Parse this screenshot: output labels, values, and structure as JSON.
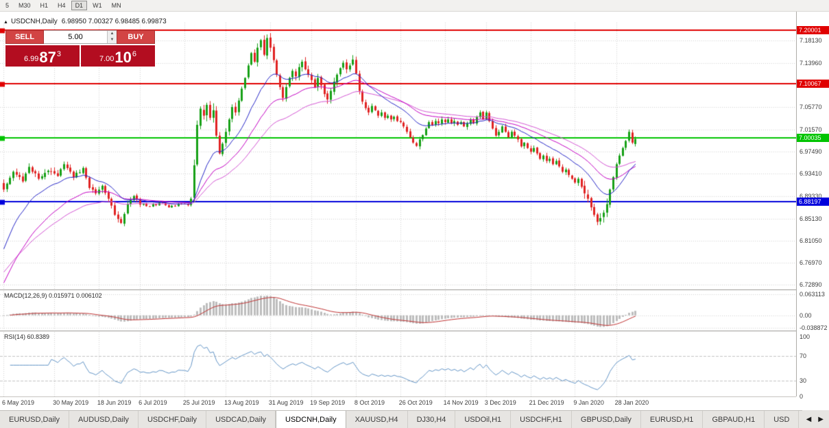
{
  "toolbar": {
    "timeframes": [
      {
        "label": "5",
        "active": false
      },
      {
        "label": "M30",
        "active": false
      },
      {
        "label": "H1",
        "active": false
      },
      {
        "label": "H4",
        "active": false
      },
      {
        "label": "D1",
        "active": true
      },
      {
        "label": "W1",
        "active": false
      },
      {
        "label": "MN",
        "active": false
      }
    ]
  },
  "chart": {
    "marker": "▲",
    "symbol_title": "USDCNH,Daily",
    "ohlc": "6.98950 7.00327 6.98485 6.99873"
  },
  "trade_panel": {
    "sell_label": "SELL",
    "buy_label": "BUY",
    "volume": "5.00",
    "spin_up": "▲",
    "spin_down": "▼",
    "sell_small": "6.99",
    "sell_big": "87",
    "sell_sup": "3",
    "buy_small": "7.00",
    "buy_big": "10",
    "buy_sup": "6"
  },
  "chart_data": {
    "type": "candlestick",
    "symbol": "USDCNH",
    "timeframe": "Daily",
    "num_candles": 200,
    "candle_spacing": 4.63,
    "ylim": [
      6.721,
      7.2145
    ],
    "last_candle": [
      6.9895,
      7.00327,
      6.98485,
      6.99873
    ],
    "close_anchors": [
      [
        0,
        6.905
      ],
      [
        3,
        6.938
      ],
      [
        6,
        6.92
      ],
      [
        8,
        6.947
      ],
      [
        11,
        6.925
      ],
      [
        14,
        6.94
      ],
      [
        17,
        6.93
      ],
      [
        19,
        6.952
      ],
      [
        22,
        6.928
      ],
      [
        25,
        6.945
      ],
      [
        27,
        6.908
      ],
      [
        29,
        6.898
      ],
      [
        31,
        6.912
      ],
      [
        33,
        6.888
      ],
      [
        35,
        6.858
      ],
      [
        37,
        6.843
      ],
      [
        39,
        6.878
      ],
      [
        41,
        6.893
      ],
      [
        43,
        6.877
      ],
      [
        46,
        6.874
      ],
      [
        49,
        6.881
      ],
      [
        52,
        6.872
      ],
      [
        55,
        6.879
      ],
      [
        58,
        6.876
      ],
      [
        59,
        6.888
      ],
      [
        60,
        6.95
      ],
      [
        61,
        7.025
      ],
      [
        62,
        7.055
      ],
      [
        63,
        7.042
      ],
      [
        64,
        7.062
      ],
      [
        65,
        7.038
      ],
      [
        66,
        7.052
      ],
      [
        67,
        7.005
      ],
      [
        68,
        6.972
      ],
      [
        69,
        6.99
      ],
      [
        70,
        7.012
      ],
      [
        71,
        7.035
      ],
      [
        72,
        7.058
      ],
      [
        73,
        7.048
      ],
      [
        74,
        7.07
      ],
      [
        75,
        7.092
      ],
      [
        76,
        7.112
      ],
      [
        77,
        7.135
      ],
      [
        78,
        7.158
      ],
      [
        79,
        7.142
      ],
      [
        80,
        7.168
      ],
      [
        81,
        7.182
      ],
      [
        82,
        7.155
      ],
      [
        83,
        7.186
      ],
      [
        84,
        7.168
      ],
      [
        85,
        7.145
      ],
      [
        86,
        7.118
      ],
      [
        87,
        7.095
      ],
      [
        88,
        7.075
      ],
      [
        89,
        7.095
      ],
      [
        90,
        7.112
      ],
      [
        91,
        7.125
      ],
      [
        92,
        7.115
      ],
      [
        93,
        7.132
      ],
      [
        94,
        7.142
      ],
      [
        95,
        7.128
      ],
      [
        96,
        7.118
      ],
      [
        97,
        7.108
      ],
      [
        98,
        7.095
      ],
      [
        99,
        7.112
      ],
      [
        100,
        7.098
      ],
      [
        101,
        7.082
      ],
      [
        102,
        7.072
      ],
      [
        103,
        7.088
      ],
      [
        104,
        7.105
      ],
      [
        105,
        7.118
      ],
      [
        106,
        7.13
      ],
      [
        107,
        7.14
      ],
      [
        108,
        7.128
      ],
      [
        109,
        7.135
      ],
      [
        110,
        7.146
      ],
      [
        111,
        7.12
      ],
      [
        112,
        7.088
      ],
      [
        113,
        7.068
      ],
      [
        114,
        7.056
      ],
      [
        115,
        7.048
      ],
      [
        116,
        7.06
      ],
      [
        117,
        7.052
      ],
      [
        118,
        7.042
      ],
      [
        119,
        7.048
      ],
      [
        120,
        7.038
      ],
      [
        121,
        7.042
      ],
      [
        122,
        7.035
      ],
      [
        123,
        7.04
      ],
      [
        124,
        7.032
      ],
      [
        125,
        7.03
      ],
      [
        126,
        7.022
      ],
      [
        127,
        7.012
      ],
      [
        128,
        7.002
      ],
      [
        129,
        6.992
      ],
      [
        130,
        6.986
      ],
      [
        131,
        6.998
      ],
      [
        132,
        7.006
      ],
      [
        133,
        7.018
      ],
      [
        134,
        7.03
      ],
      [
        135,
        7.025
      ],
      [
        136,
        7.032
      ],
      [
        137,
        7.028
      ],
      [
        138,
        7.035
      ],
      [
        139,
        7.03
      ],
      [
        140,
        7.035
      ],
      [
        141,
        7.028
      ],
      [
        142,
        7.032
      ],
      [
        143,
        7.025
      ],
      [
        144,
        7.03
      ],
      [
        145,
        7.022
      ],
      [
        146,
        7.028
      ],
      [
        147,
        7.035
      ],
      [
        148,
        7.028
      ],
      [
        149,
        7.04
      ],
      [
        150,
        7.048
      ],
      [
        151,
        7.035
      ],
      [
        152,
        7.048
      ],
      [
        153,
        7.032
      ],
      [
        154,
        7.018
      ],
      [
        155,
        7.005
      ],
      [
        156,
        7.012
      ],
      [
        157,
        7.022
      ],
      [
        158,
        7.012
      ],
      [
        159,
        7.002
      ],
      [
        160,
        7.012
      ],
      [
        161,
        7.005
      ],
      [
        162,
        6.998
      ],
      [
        163,
        6.985
      ],
      [
        164,
        6.992
      ],
      [
        165,
        6.982
      ],
      [
        166,
        6.975
      ],
      [
        167,
        6.982
      ],
      [
        168,
        6.972
      ],
      [
        169,
        6.962
      ],
      [
        170,
        6.968
      ],
      [
        171,
        6.958
      ],
      [
        172,
        6.962
      ],
      [
        173,
        6.952
      ],
      [
        174,
        6.958
      ],
      [
        175,
        6.948
      ],
      [
        176,
        6.938
      ],
      [
        177,
        6.942
      ],
      [
        178,
        6.932
      ],
      [
        179,
        6.925
      ],
      [
        180,
        6.918
      ],
      [
        181,
        6.925
      ],
      [
        182,
        6.91
      ],
      [
        183,
        6.898
      ],
      [
        184,
        6.888
      ],
      [
        185,
        6.872
      ],
      [
        186,
        6.858
      ],
      [
        187,
        6.845
      ],
      [
        188,
        6.852
      ],
      [
        189,
        6.862
      ],
      [
        190,
        6.878
      ],
      [
        191,
        6.905
      ],
      [
        192,
        6.928
      ],
      [
        193,
        6.952
      ],
      [
        194,
        6.968
      ],
      [
        195,
        6.982
      ],
      [
        196,
        6.995
      ],
      [
        197,
        7.012
      ],
      [
        198,
        6.992
      ],
      [
        199,
        6.99873
      ]
    ],
    "levels": [
      {
        "price": 7.20001,
        "label": "7.20001",
        "color": "#e00000"
      },
      {
        "price": 7.10067,
        "label": "7.10067",
        "color": "#e00000"
      },
      {
        "price": 7.00035,
        "label": "7.00035",
        "color": "#00c400"
      },
      {
        "price": 6.88197,
        "label": "6.88197",
        "color": "#0000dc"
      }
    ],
    "y_ticks": [
      [
        7.1813,
        "7.18130"
      ],
      [
        7.1396,
        "7.13960"
      ],
      [
        7.0577,
        "7.05770"
      ],
      [
        7.0157,
        "7.01570"
      ],
      [
        6.9749,
        "6.97490"
      ],
      [
        6.9341,
        "6.93410"
      ],
      [
        6.8933,
        "6.89330"
      ],
      [
        6.8513,
        "6.85130"
      ],
      [
        6.8105,
        "6.81050"
      ],
      [
        6.7697,
        "6.76970"
      ],
      [
        6.7289,
        "6.72890"
      ]
    ],
    "x_ticks": [
      [
        0,
        "6 May 2019"
      ],
      [
        16,
        "30 May 2019"
      ],
      [
        30,
        "18 Jun 2019"
      ],
      [
        43,
        "6 Jul 2019"
      ],
      [
        57,
        "25 Jul 2019"
      ],
      [
        70,
        "13 Aug 2019"
      ],
      [
        84,
        "31 Aug 2019"
      ],
      [
        97,
        "19 Sep 2019"
      ],
      [
        111,
        "8 Oct 2019"
      ],
      [
        125,
        "26 Oct 2019"
      ],
      [
        139,
        "14 Nov 2019"
      ],
      [
        152,
        "3 Dec 2019"
      ],
      [
        166,
        "21 Dec 2019"
      ],
      [
        180,
        "9 Jan 2020"
      ],
      [
        193,
        "28 Jan 2020"
      ]
    ],
    "macd": {
      "label": "MACD(12,26,9) 0.015971 0.006102",
      "params": [
        12,
        26,
        9
      ],
      "value": 0.015971,
      "signal_value": 0.006102,
      "ylim": [
        -0.04,
        0.072
      ],
      "ticks": [
        [
          0.063113,
          "0.063113"
        ],
        [
          0,
          "0.00"
        ],
        [
          -0.038872,
          "-0.038872"
        ]
      ]
    },
    "rsi": {
      "label": "RSI(14) 60.8389",
      "period": 14,
      "value": 60.8389,
      "levels": [
        70,
        30
      ],
      "ticks": [
        [
          100,
          "100"
        ],
        [
          70,
          "70"
        ],
        [
          30,
          "30"
        ],
        [
          0,
          "0"
        ]
      ]
    },
    "colors": {
      "up": "#16a016",
      "down": "#e02222",
      "ma_fast": "#2626c8",
      "ma_mid": "#c400c4",
      "ma_slow": "#d454d4",
      "macd_hist": "#bdbdbd",
      "macd_signal": "#c03232",
      "rsi_line": "#6496c8",
      "grid": "#d4d4d4"
    }
  },
  "tabs": {
    "items": [
      {
        "label": "EURUSD,Daily",
        "active": false
      },
      {
        "label": "AUDUSD,Daily",
        "active": false
      },
      {
        "label": "USDCHF,Daily",
        "active": false
      },
      {
        "label": "USDCAD,Daily",
        "active": false
      },
      {
        "label": "USDCNH,Daily",
        "active": true
      },
      {
        "label": "XAUUSD,H4",
        "active": false
      },
      {
        "label": "DJ30,H4",
        "active": false
      },
      {
        "label": "USDOil,H1",
        "active": false
      },
      {
        "label": "USDCHF,H1",
        "active": false
      },
      {
        "label": "GBPUSD,Daily",
        "active": false
      },
      {
        "label": "EURUSD,H1",
        "active": false
      },
      {
        "label": "GBPAUD,H1",
        "active": false
      },
      {
        "label": "USD",
        "active": false
      }
    ],
    "scroll_left": "◀",
    "scroll_right": "▶"
  }
}
